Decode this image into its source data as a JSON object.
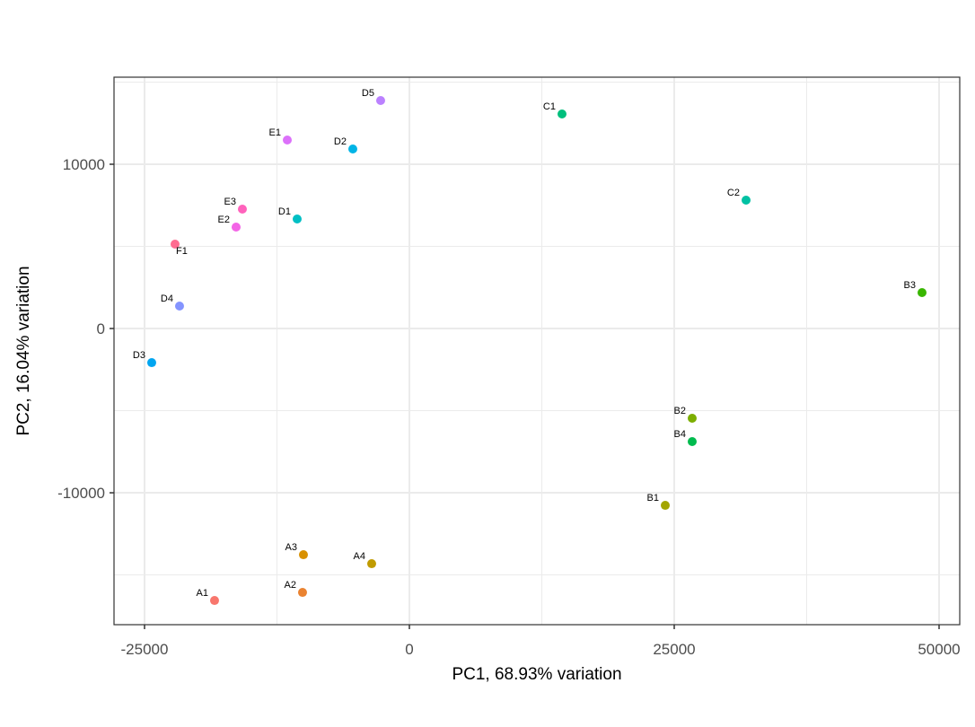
{
  "chart_data": {
    "type": "scatter",
    "x_label": "PC1, 68.93% variation",
    "y_label": "PC2, 16.04% variation",
    "xlim": [
      -27880,
      51950
    ],
    "ylim": [
      -18030,
      15300
    ],
    "xticks": [
      -25000,
      0,
      25000,
      50000
    ],
    "yticks": [
      -10000,
      0,
      10000
    ],
    "minor_xticks": [
      -12500,
      12500,
      37500
    ],
    "minor_yticks": [
      -15000,
      -5000,
      5000,
      15000
    ],
    "grid": true,
    "labels": [
      "A1",
      "A2",
      "A3",
      "A4",
      "B1",
      "B2",
      "B3",
      "B4",
      "C1",
      "C2",
      "D1",
      "D2",
      "D3",
      "D4",
      "D5",
      "E1",
      "E2",
      "E3",
      "F1"
    ],
    "x": [
      -18390,
      -10085,
      -10000,
      -3559,
      24153,
      26695,
      48390,
      26695,
      14407,
      31780,
      -10593,
      -5339,
      -24322,
      -21695,
      -2712,
      -11525,
      -16356,
      -15763,
      -22119
    ],
    "y": [
      -16557,
      -16066,
      -13770,
      -14317,
      -10765,
      -5464,
      2186,
      -6885,
      13060,
      7814,
      6667,
      10929,
      -2077,
      1366,
      13880,
      11475,
      6175,
      7268,
      5137
    ],
    "colors": [
      "#F8766D",
      "#EA8331",
      "#D89000",
      "#C09B00",
      "#A3A500",
      "#7CAE00",
      "#39B600",
      "#00BB4E",
      "#00BF7D",
      "#00C1A3",
      "#00BFC4",
      "#00B4E6",
      "#00A5F0",
      "#8494FF",
      "#BB81FF",
      "#DC71FA",
      "#F365E6",
      "#FF62BC",
      "#FF6C91"
    ]
  }
}
